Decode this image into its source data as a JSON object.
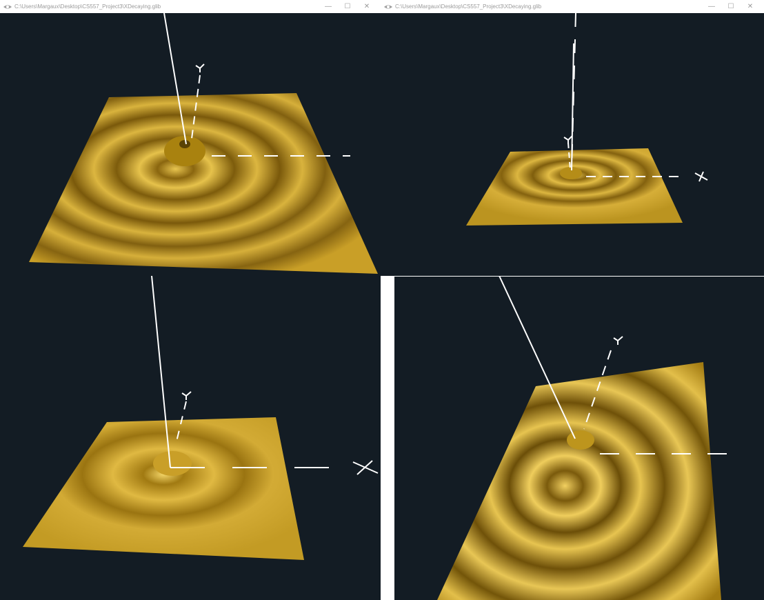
{
  "windows": [
    {
      "id": "tl",
      "title": "C:\\Users\\Margaux\\Desktop\\CS557_Project3\\XDecaying.glib",
      "has_titlebar": true
    },
    {
      "id": "tr",
      "title": "C:\\Users\\Margaux\\Desktop\\CS557_Project3\\XDecaying.glib",
      "has_titlebar": true
    },
    {
      "id": "bl",
      "title": "",
      "has_titlebar": false
    },
    {
      "id": "br",
      "title": "",
      "has_titlebar": false
    }
  ],
  "controls": {
    "minimize": "—",
    "maximize": "☐",
    "close": "✕"
  },
  "icons": {
    "app": "glman-eye-icon",
    "minimize": "minimize-icon",
    "maximize": "maximize-icon",
    "close": "close-icon",
    "axis_x": "x-axis-label-icon",
    "axis_y": "y-axis-label-icon"
  },
  "colors": {
    "background": "#131c24",
    "surface": "#c79a22",
    "surface_dark": "#6f5208",
    "surface_light": "#f0d066",
    "axes": "#ffffff",
    "titlebar": "#ffffff"
  }
}
